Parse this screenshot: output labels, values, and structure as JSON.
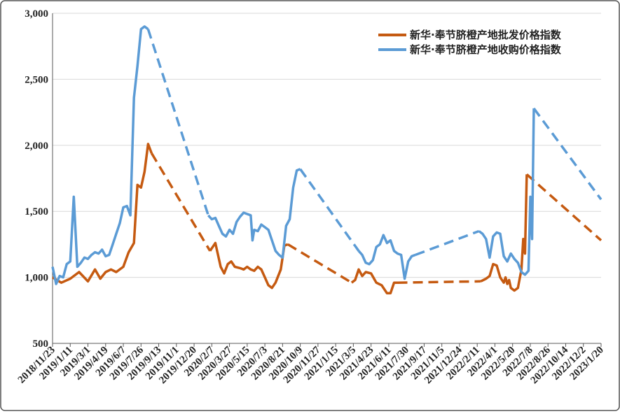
{
  "chart_data": {
    "type": "line",
    "title": "",
    "xlabel": "",
    "ylabel": "",
    "ylim": [
      500,
      3000
    ],
    "yticks": [
      500,
      1000,
      1500,
      2000,
      2500,
      3000
    ],
    "ytick_labels": [
      "500",
      "1,000",
      "1,500",
      "2,000",
      "2,500",
      "3,000"
    ],
    "x_tick_labels": [
      "2018/11/23",
      "2019/1/11",
      "2019/3/1",
      "2019/4/19",
      "2019/6/7",
      "2019/7/26",
      "2019/9/13",
      "2019/11/1",
      "2019/12/20",
      "2020/2/7",
      "2020/3/27",
      "2020/5/15",
      "2020/7/3",
      "2020/8/21",
      "2020/10/9",
      "2020/11/27",
      "2021/1/15",
      "2021/3/5",
      "2021/4/23",
      "2021/6/11",
      "2021/7/30",
      "2021/9/17",
      "2021/11/5",
      "2021/12/24",
      "2022/2/11",
      "2022/4/1",
      "2022/5/20",
      "2022/7/8",
      "2022/8/26",
      "2022/10/14",
      "2022/12/2",
      "2023/1/20"
    ],
    "grid": true,
    "legend_position": "top-right",
    "series": [
      {
        "name": "新华·奉节脐橙产地批发价格指数",
        "color": "#C55A11",
        "segments": [
          {
            "style": "solid",
            "points": [
              [
                0,
                1000
              ],
              [
                0.5,
                960
              ],
              [
                1,
                990
              ],
              [
                1.5,
                1040
              ],
              [
                2,
                970
              ],
              [
                2.4,
                1060
              ],
              [
                2.7,
                990
              ],
              [
                3,
                1040
              ],
              [
                3.3,
                1060
              ],
              [
                3.6,
                1040
              ],
              [
                4,
                1080
              ],
              [
                4.3,
                1190
              ],
              [
                4.6,
                1260
              ],
              [
                4.8,
                1700
              ],
              [
                5,
                1680
              ],
              [
                5.2,
                1800
              ],
              [
                5.4,
                2010
              ],
              [
                5.6,
                1940
              ]
            ]
          },
          {
            "style": "dashed",
            "points": [
              [
                5.6,
                1940
              ],
              [
                8.9,
                1200
              ]
            ]
          },
          {
            "style": "solid",
            "points": [
              [
                8.9,
                1200
              ],
              [
                9.2,
                1260
              ],
              [
                9.5,
                1080
              ],
              [
                9.7,
                1030
              ],
              [
                9.9,
                1100
              ],
              [
                10.1,
                1120
              ],
              [
                10.3,
                1080
              ],
              [
                10.6,
                1070
              ],
              [
                10.8,
                1060
              ],
              [
                11,
                1080
              ],
              [
                11.2,
                1060
              ],
              [
                11.4,
                1050
              ],
              [
                11.6,
                1080
              ],
              [
                11.8,
                1060
              ],
              [
                12,
                1000
              ],
              [
                12.2,
                940
              ],
              [
                12.4,
                920
              ],
              [
                12.6,
                960
              ],
              [
                12.9,
                1060
              ],
              [
                13.1,
                1240
              ],
              [
                13.3,
                1250
              ]
            ]
          },
          {
            "style": "dashed",
            "points": [
              [
                13.3,
                1250
              ],
              [
                16.9,
                960
              ]
            ]
          },
          {
            "style": "solid",
            "points": [
              [
                16.9,
                960
              ],
              [
                17.1,
                980
              ],
              [
                17.3,
                1060
              ],
              [
                17.5,
                1010
              ],
              [
                17.7,
                1040
              ],
              [
                18,
                1030
              ],
              [
                18.3,
                960
              ],
              [
                18.6,
                940
              ],
              [
                18.9,
                880
              ],
              [
                19.1,
                880
              ],
              [
                19.3,
                960
              ],
              [
                19.5,
                960
              ]
            ]
          },
          {
            "style": "dashed",
            "points": [
              [
                19.5,
                960
              ],
              [
                24.2,
                970
              ]
            ]
          },
          {
            "style": "solid",
            "points": [
              [
                24.2,
                970
              ],
              [
                24.5,
                990
              ],
              [
                24.7,
                1010
              ],
              [
                24.9,
                1100
              ],
              [
                25.1,
                1090
              ],
              [
                25.3,
                1000
              ],
              [
                25.5,
                960
              ],
              [
                25.6,
                1000
              ],
              [
                25.7,
                950
              ],
              [
                25.8,
                980
              ],
              [
                25.9,
                920
              ],
              [
                26.1,
                900
              ],
              [
                26.3,
                920
              ],
              [
                26.5,
                1060
              ],
              [
                26.6,
                1290
              ],
              [
                26.7,
                1180
              ],
              [
                26.8,
                1780
              ]
            ]
          },
          {
            "style": "dashed",
            "points": [
              [
                26.8,
                1780
              ],
              [
                31,
                1280
              ]
            ]
          }
        ]
      },
      {
        "name": "新华·奉节脐橙产地收购价格指数",
        "color": "#5B9BD5",
        "segments": [
          {
            "style": "solid",
            "points": [
              [
                0,
                1080
              ],
              [
                0.2,
                950
              ],
              [
                0.4,
                1010
              ],
              [
                0.6,
                1000
              ],
              [
                0.8,
                1100
              ],
              [
                1,
                1120
              ],
              [
                1.2,
                1610
              ],
              [
                1.4,
                1080
              ],
              [
                1.6,
                1110
              ],
              [
                1.8,
                1150
              ],
              [
                2,
                1140
              ],
              [
                2.2,
                1170
              ],
              [
                2.4,
                1190
              ],
              [
                2.6,
                1180
              ],
              [
                2.8,
                1210
              ],
              [
                3,
                1160
              ],
              [
                3.2,
                1170
              ],
              [
                3.4,
                1250
              ],
              [
                3.6,
                1330
              ],
              [
                3.8,
                1410
              ],
              [
                4,
                1530
              ],
              [
                4.2,
                1540
              ],
              [
                4.4,
                1470
              ],
              [
                4.6,
                2360
              ],
              [
                4.8,
                2600
              ],
              [
                5,
                2880
              ],
              [
                5.2,
                2900
              ],
              [
                5.4,
                2880
              ]
            ]
          },
          {
            "style": "dashed",
            "points": [
              [
                5.4,
                2880
              ],
              [
                8.8,
                1470
              ]
            ]
          },
          {
            "style": "solid",
            "points": [
              [
                8.8,
                1470
              ],
              [
                9,
                1440
              ],
              [
                9.2,
                1450
              ],
              [
                9.4,
                1390
              ],
              [
                9.6,
                1330
              ],
              [
                9.8,
                1310
              ],
              [
                10,
                1360
              ],
              [
                10.2,
                1330
              ],
              [
                10.4,
                1420
              ],
              [
                10.6,
                1460
              ],
              [
                10.8,
                1490
              ],
              [
                11,
                1480
              ],
              [
                11.2,
                1470
              ],
              [
                11.3,
                1280
              ],
              [
                11.4,
                1360
              ],
              [
                11.6,
                1350
              ],
              [
                11.8,
                1400
              ],
              [
                12,
                1380
              ],
              [
                12.2,
                1360
              ],
              [
                12.4,
                1280
              ],
              [
                12.6,
                1200
              ],
              [
                12.8,
                1170
              ],
              [
                13,
                1150
              ],
              [
                13.2,
                1390
              ],
              [
                13.4,
                1440
              ],
              [
                13.6,
                1680
              ],
              [
                13.8,
                1810
              ],
              [
                14,
                1820
              ]
            ]
          },
          {
            "style": "dashed",
            "points": [
              [
                14,
                1820
              ],
              [
                17.3,
                1200
              ]
            ]
          },
          {
            "style": "solid",
            "points": [
              [
                17.3,
                1200
              ],
              [
                17.5,
                1170
              ],
              [
                17.7,
                1110
              ],
              [
                17.9,
                1100
              ],
              [
                18.1,
                1130
              ],
              [
                18.3,
                1230
              ],
              [
                18.5,
                1250
              ],
              [
                18.7,
                1320
              ],
              [
                18.9,
                1260
              ],
              [
                19.1,
                1280
              ],
              [
                19.3,
                1200
              ],
              [
                19.5,
                1180
              ],
              [
                19.7,
                1170
              ],
              [
                19.9,
                990
              ],
              [
                20.1,
                1120
              ],
              [
                20.3,
                1160
              ],
              [
                20.5,
                1170
              ]
            ]
          },
          {
            "style": "dashed",
            "points": [
              [
                20.5,
                1170
              ],
              [
                24.1,
                1350
              ]
            ]
          },
          {
            "style": "solid",
            "points": [
              [
                24.1,
                1350
              ],
              [
                24.3,
                1330
              ],
              [
                24.5,
                1290
              ],
              [
                24.7,
                1150
              ],
              [
                24.9,
                1310
              ],
              [
                25.1,
                1340
              ],
              [
                25.3,
                1330
              ],
              [
                25.5,
                1160
              ],
              [
                25.7,
                1120
              ],
              [
                25.9,
                1180
              ],
              [
                26.1,
                1140
              ],
              [
                26.3,
                1110
              ],
              [
                26.5,
                1040
              ],
              [
                26.7,
                1020
              ],
              [
                26.9,
                1050
              ],
              [
                27,
                1610
              ],
              [
                27.1,
                1290
              ],
              [
                27.2,
                2280
              ]
            ]
          },
          {
            "style": "dashed",
            "points": [
              [
                27.2,
                2280
              ],
              [
                31,
                1590
              ]
            ]
          }
        ]
      }
    ]
  }
}
